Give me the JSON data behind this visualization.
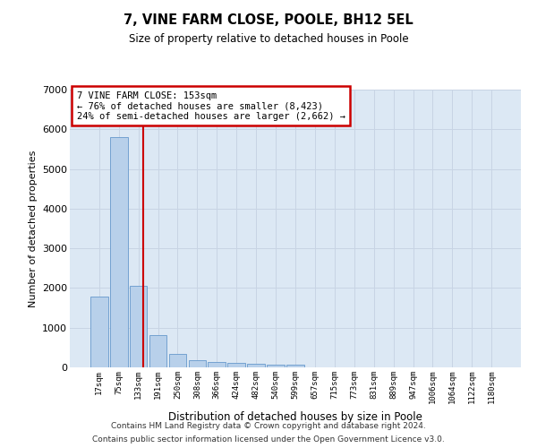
{
  "title": "7, VINE FARM CLOSE, POOLE, BH12 5EL",
  "subtitle": "Size of property relative to detached houses in Poole",
  "xlabel": "Distribution of detached houses by size in Poole",
  "ylabel": "Number of detached properties",
  "bin_labels": [
    "17sqm",
    "75sqm",
    "133sqm",
    "191sqm",
    "250sqm",
    "308sqm",
    "366sqm",
    "424sqm",
    "482sqm",
    "540sqm",
    "599sqm",
    "657sqm",
    "715sqm",
    "773sqm",
    "831sqm",
    "889sqm",
    "947sqm",
    "1006sqm",
    "1064sqm",
    "1122sqm",
    "1180sqm"
  ],
  "bar_heights": [
    1780,
    5800,
    2060,
    820,
    340,
    190,
    130,
    110,
    100,
    70,
    60,
    0,
    0,
    0,
    0,
    0,
    0,
    0,
    0,
    0,
    0
  ],
  "bar_color": "#b8d0ea",
  "bar_edge_color": "#6699cc",
  "grid_color": "#c8d4e4",
  "background_color": "#dce8f4",
  "redline_x": 2.25,
  "annotation_line1": "7 VINE FARM CLOSE: 153sqm",
  "annotation_line2": "← 76% of detached houses are smaller (8,423)",
  "annotation_line3": "24% of semi-detached houses are larger (2,662) →",
  "annotation_box_color": "#cc0000",
  "ylim_min": 0,
  "ylim_max": 7000,
  "yticks": [
    0,
    1000,
    2000,
    3000,
    4000,
    5000,
    6000,
    7000
  ],
  "footer_line1": "Contains HM Land Registry data © Crown copyright and database right 2024.",
  "footer_line2": "Contains public sector information licensed under the Open Government Licence v3.0."
}
